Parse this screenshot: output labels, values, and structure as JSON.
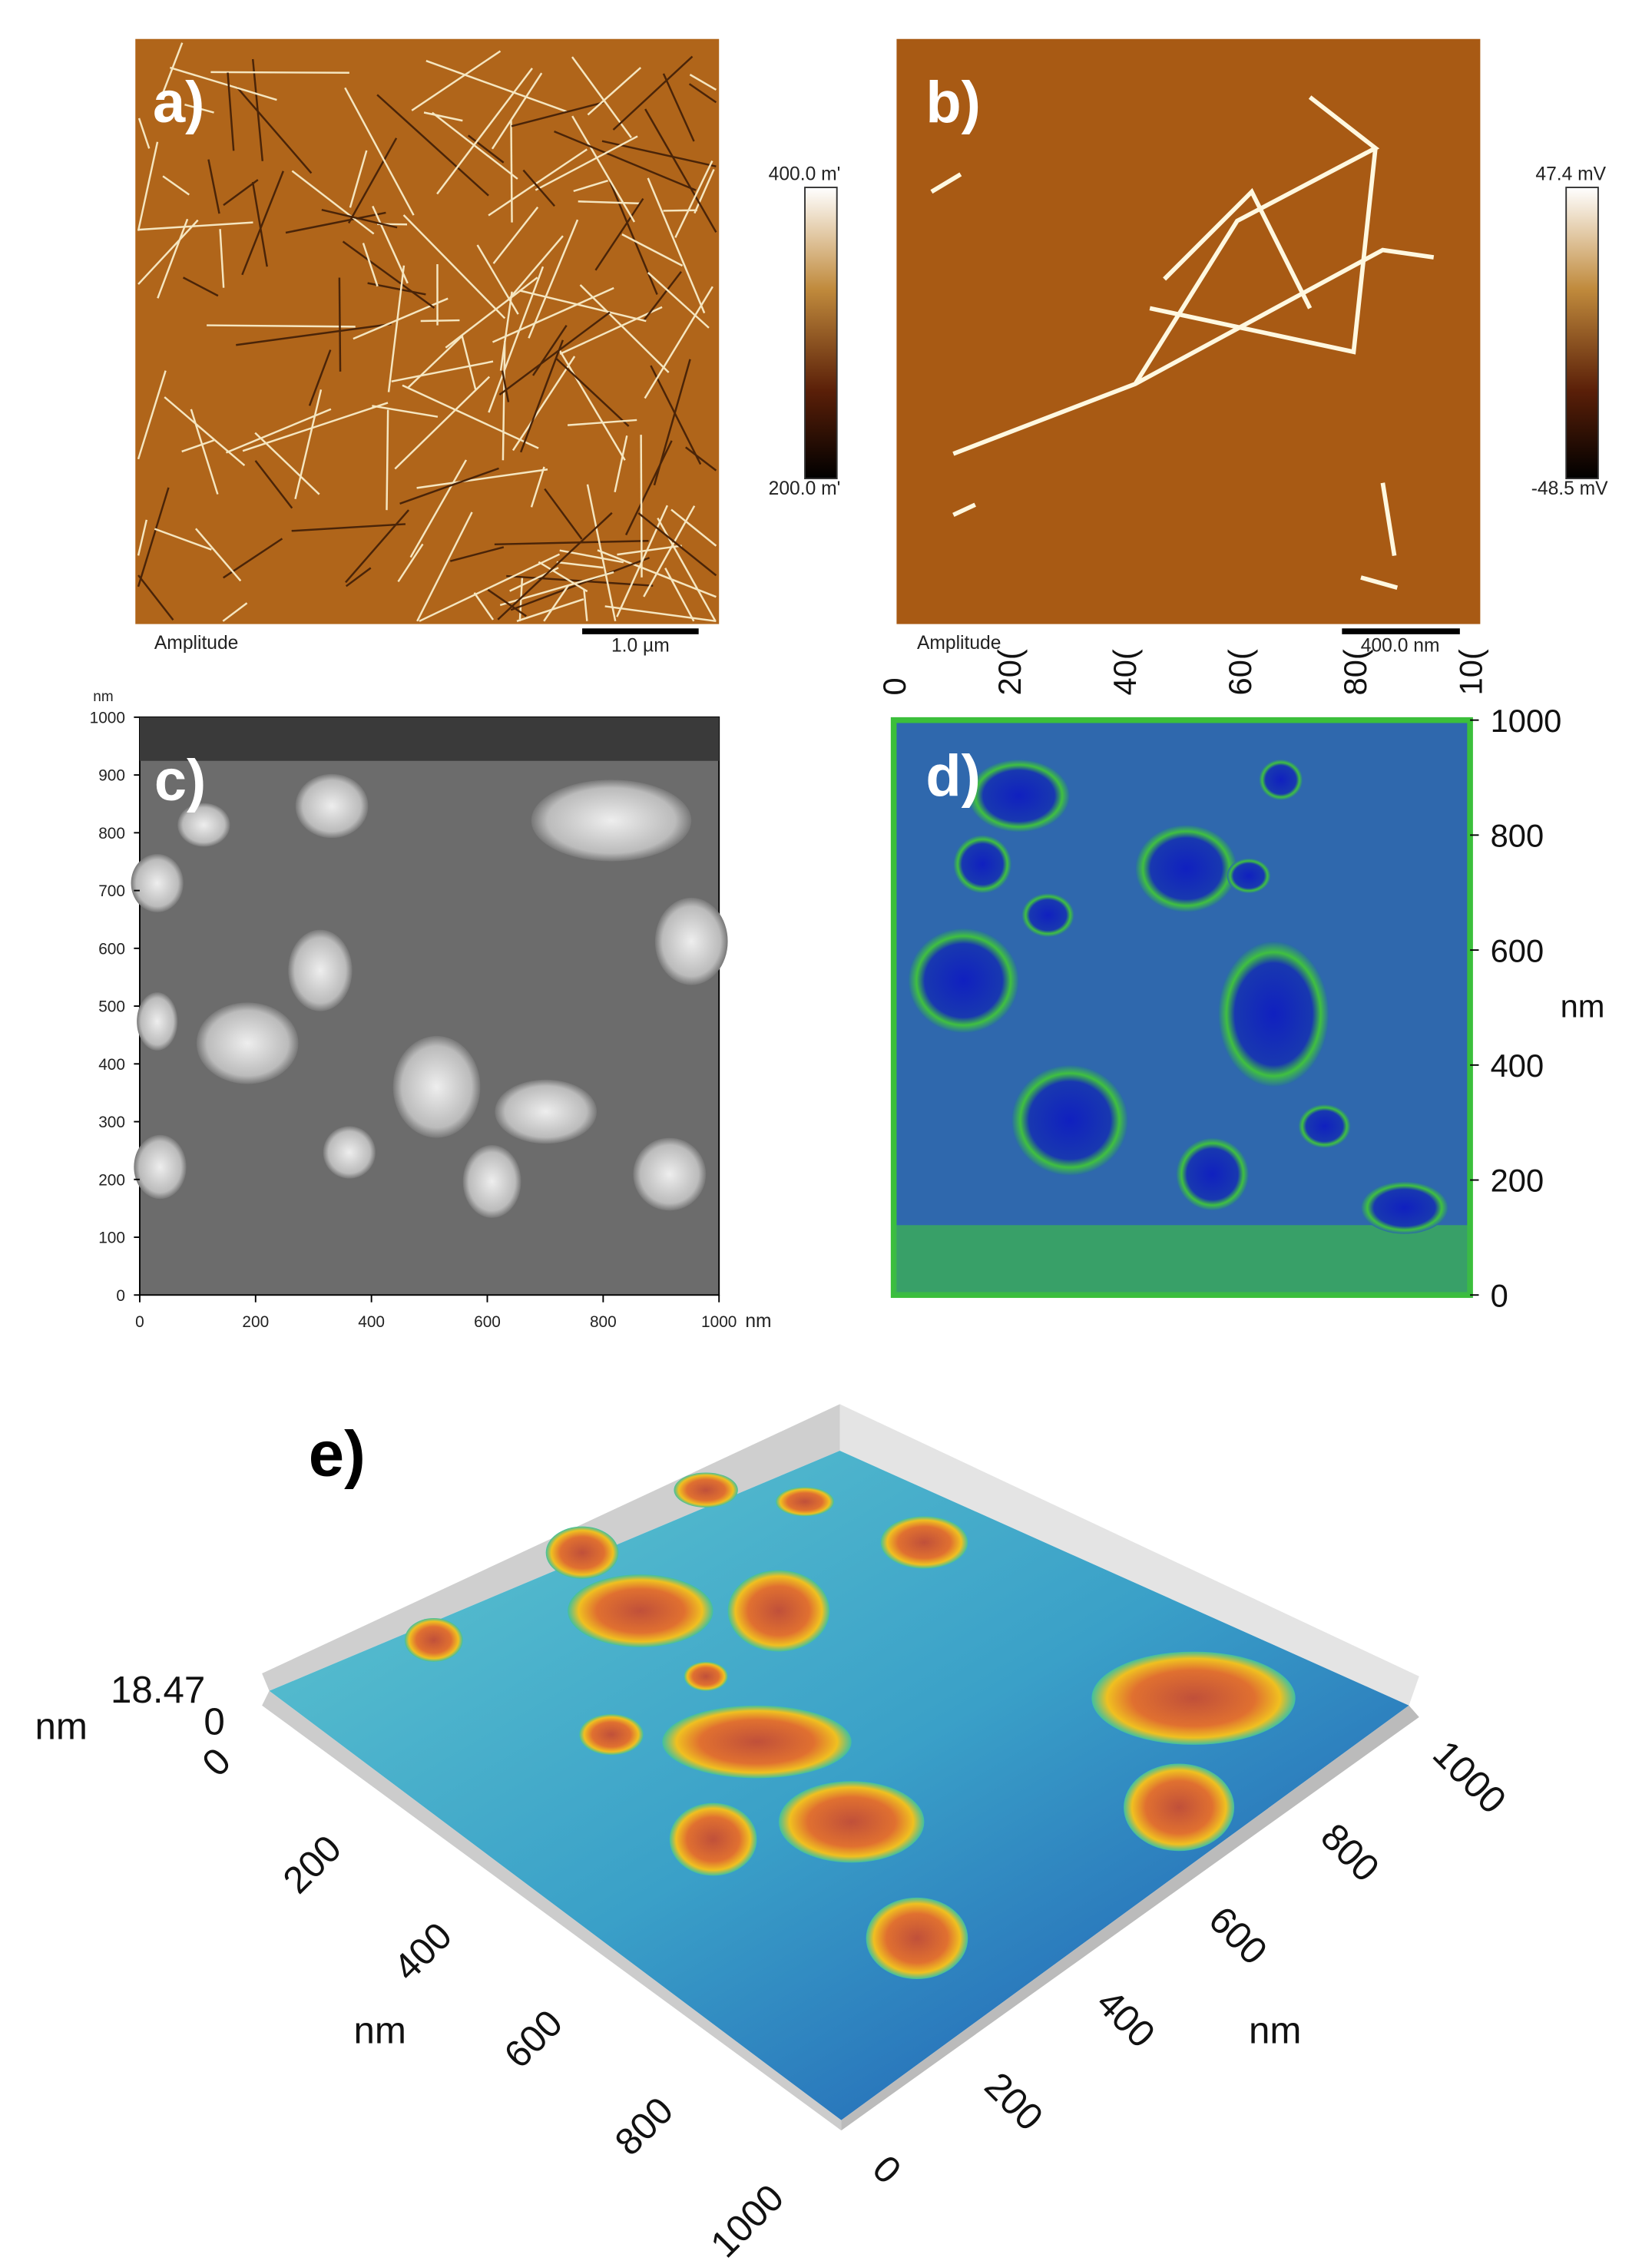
{
  "panels": {
    "a": {
      "label": "a)",
      "colorbar_max": "400.0 m'",
      "colorbar_min": "200.0 m'",
      "channel": "Amplitude",
      "scale_bar": "1.0 µm"
    },
    "b": {
      "label": "b)",
      "colorbar_max": "47.4 mV",
      "colorbar_min": "-48.5 mV",
      "channel": "Amplitude",
      "scale_bar": "400.0 nm"
    },
    "c": {
      "label": "c)",
      "y_unit": "nm",
      "yticks": [
        0,
        100,
        200,
        300,
        400,
        500,
        600,
        700,
        800,
        900,
        1000
      ],
      "xticks": [
        0,
        200,
        400,
        600,
        800,
        1000
      ],
      "x_unit": "nm"
    },
    "d": {
      "label": "d)",
      "top_ticks": [
        "0",
        "20(",
        "40(",
        "60(",
        "80(",
        "10("
      ],
      "right_ticks": [
        1000,
        800,
        600,
        400,
        200,
        0
      ],
      "unit": "nm"
    },
    "e": {
      "label": "e)",
      "z_max": "18.47",
      "z_min": "0",
      "z_unit": "nm",
      "left_ticks": [
        0,
        200,
        400,
        600,
        800,
        1000
      ],
      "left_unit": "nm",
      "right_ticks": [
        0,
        200,
        400,
        600,
        800,
        1000
      ],
      "right_unit": "nm"
    }
  }
}
